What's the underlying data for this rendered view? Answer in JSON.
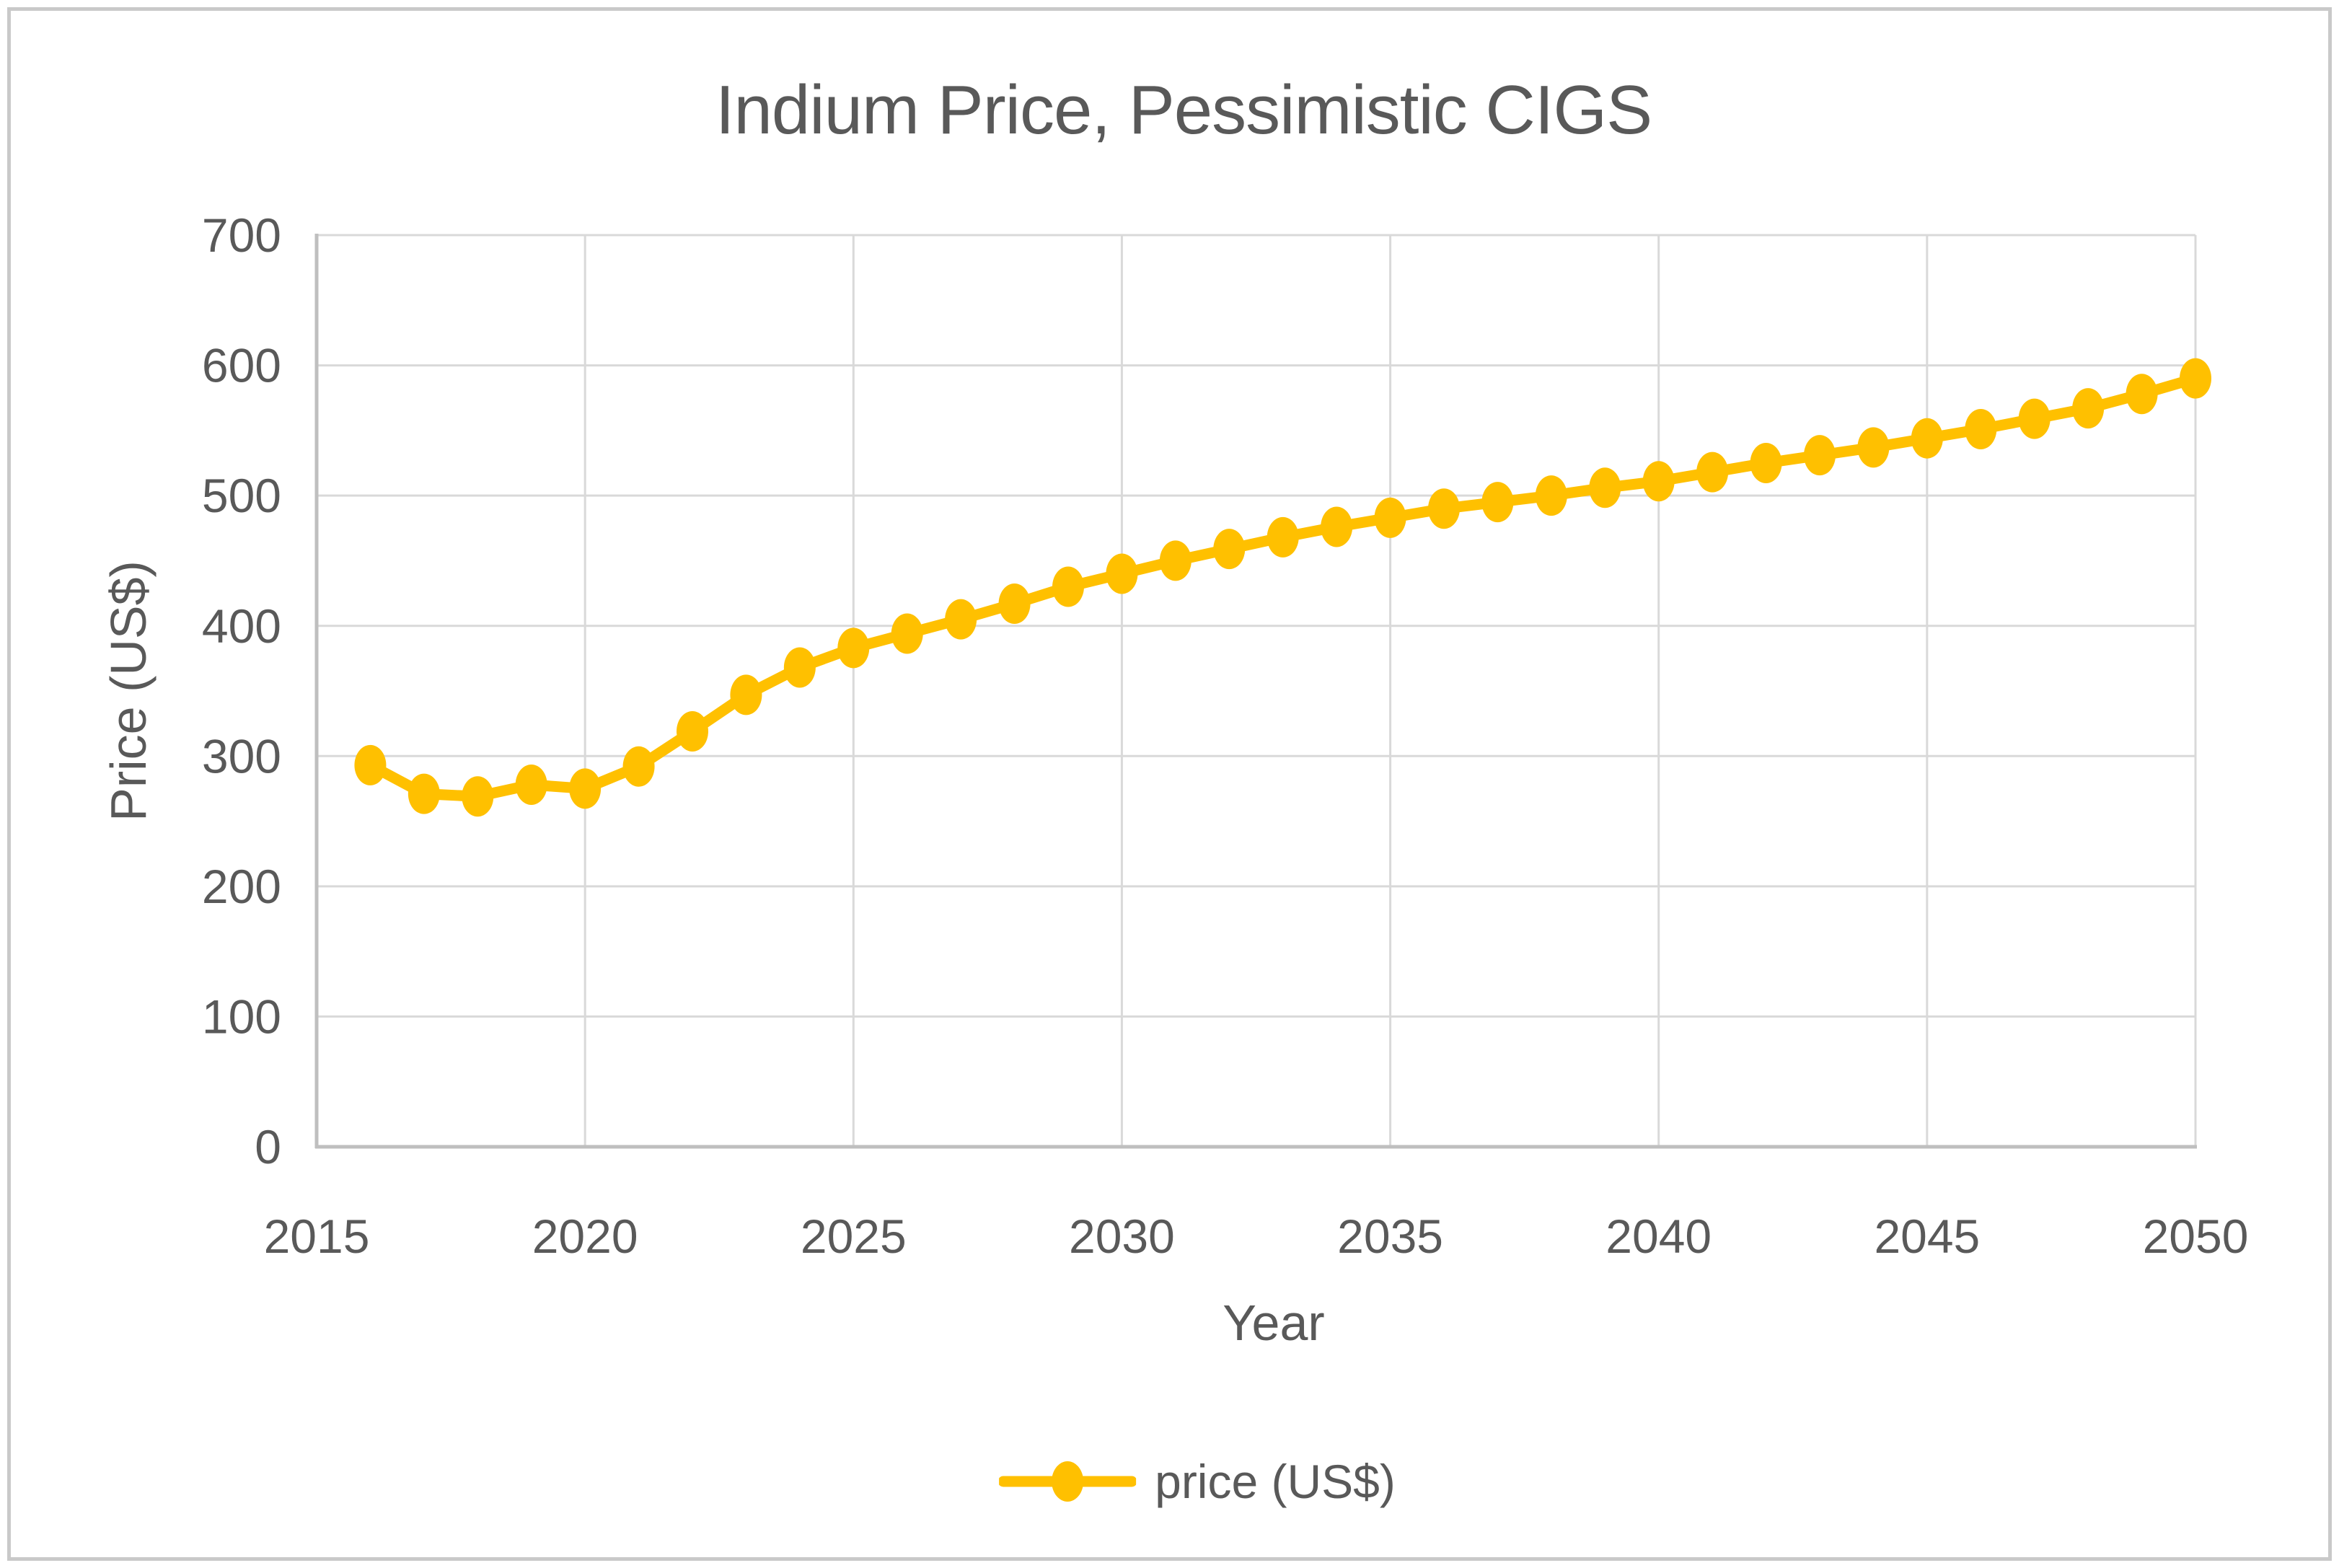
{
  "title": "Indium Price, Pessimistic CIGS",
  "x_axis": {
    "title": "Year",
    "ticks": [
      2015,
      2020,
      2025,
      2030,
      2035,
      2040,
      2045,
      2050
    ],
    "range": [
      2015,
      2050
    ]
  },
  "y_axis": {
    "title": "Price (US$)",
    "ticks": [
      0,
      100,
      200,
      300,
      400,
      500,
      600,
      700
    ],
    "range": [
      0,
      700
    ]
  },
  "legend": {
    "label": "price (US$)",
    "position": "bottom"
  },
  "colors": {
    "series": "#FFC000",
    "gridline": "#D9D9D9",
    "axis_line": "#BFBFBF",
    "text": "#595959",
    "background": "#FFFFFF"
  },
  "chart_data": {
    "type": "line",
    "title": "Indium Price, Pessimistic CIGS",
    "xlabel": "Year",
    "ylabel": "Price (US$)",
    "legend_position": "bottom",
    "grid": true,
    "marker": "circle",
    "xlim": [
      2015,
      2050
    ],
    "ylim": [
      0,
      700
    ],
    "x": [
      2016,
      2017,
      2018,
      2019,
      2020,
      2021,
      2022,
      2023,
      2024,
      2025,
      2026,
      2027,
      2028,
      2029,
      2030,
      2031,
      2032,
      2033,
      2034,
      2035,
      2036,
      2037,
      2038,
      2039,
      2040,
      2041,
      2042,
      2043,
      2044,
      2045,
      2046,
      2047,
      2048,
      2049,
      2050
    ],
    "series": [
      {
        "name": "price (US$)",
        "values": [
          293,
          271,
          269,
          278,
          275,
          292,
          319,
          347,
          368,
          383,
          394,
          405,
          417,
          430,
          440,
          450,
          459,
          468,
          476,
          483,
          490,
          495,
          500,
          506,
          511,
          518,
          525,
          531,
          537,
          544,
          551,
          559,
          567,
          578,
          590
        ]
      }
    ]
  }
}
